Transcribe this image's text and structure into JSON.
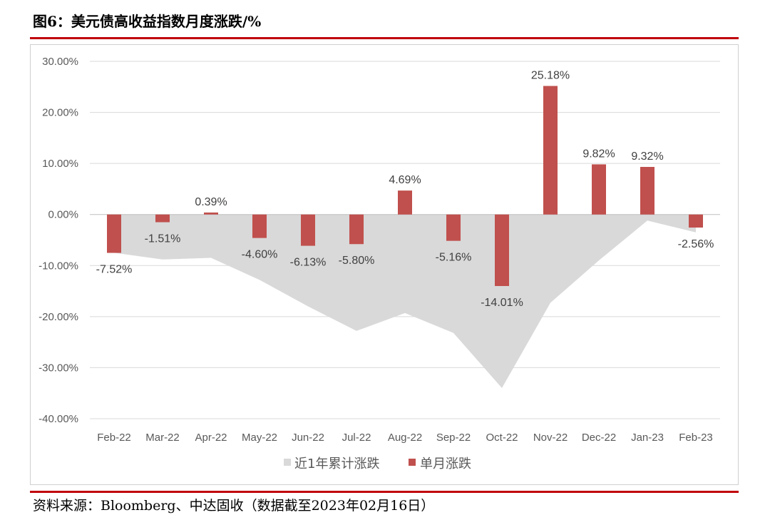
{
  "title": "图6：美元债高收益指数月度涨跌/%",
  "source": "资料来源：Bloomberg、中达固收（数据截至2023年02月16日）",
  "colors": {
    "bar": "#c0504d",
    "area": "#d9d9d9",
    "rule": "#c0000b",
    "grid": "#d9d9d9"
  },
  "chart_data": {
    "type": "bar",
    "title": "",
    "xlabel": "",
    "ylabel": "",
    "categories": [
      "Feb-22",
      "Mar-22",
      "Apr-22",
      "May-22",
      "Jun-22",
      "Jul-22",
      "Aug-22",
      "Sep-22",
      "Oct-22",
      "Nov-22",
      "Dec-22",
      "Jan-23",
      "Feb-23"
    ],
    "ylim": [
      -40,
      30
    ],
    "yticks": [
      30,
      20,
      10,
      0,
      -10,
      -20,
      -30,
      -40
    ],
    "ytick_labels": [
      "30.00%",
      "20.00%",
      "10.00%",
      "0.00%",
      "-10.00%",
      "-20.00%",
      "-30.00%",
      "-40.00%"
    ],
    "grid": true,
    "legend_position": "bottom",
    "series": [
      {
        "name": "近1年累计涨跌",
        "type": "area",
        "values": [
          -7.5,
          -8.8,
          -8.5,
          -12.8,
          -18.0,
          -22.8,
          -19.3,
          -23.2,
          -34.0,
          -17.3,
          -9.0,
          -1.2,
          -3.5
        ]
      },
      {
        "name": "单月涨跌",
        "type": "bar",
        "values": [
          -7.52,
          -1.51,
          0.39,
          -4.6,
          -6.13,
          -5.8,
          4.69,
          -5.16,
          -14.01,
          25.18,
          9.82,
          9.32,
          -2.56
        ],
        "labels": [
          "-7.52%",
          "-1.51%",
          "0.39%",
          "-4.60%",
          "-6.13%",
          "-5.80%",
          "4.69%",
          "-5.16%",
          "-14.01%",
          "25.18%",
          "9.82%",
          "9.32%",
          "-2.56%"
        ]
      }
    ]
  }
}
